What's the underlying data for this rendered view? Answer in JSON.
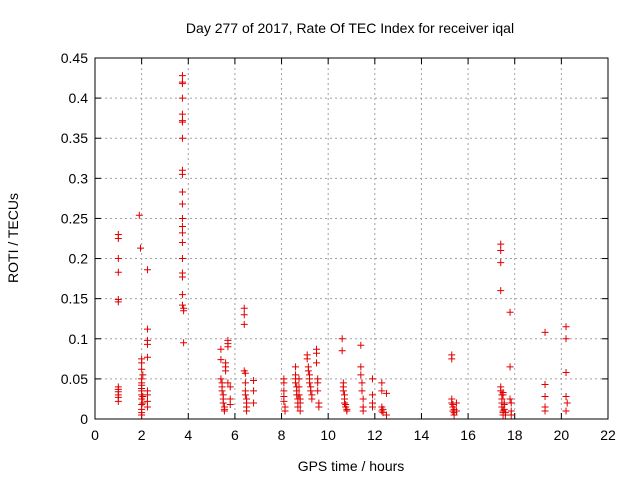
{
  "chart_data": {
    "type": "scatter",
    "title": "Day 277 of 2017, Rate Of TEC Index for receiver iqal",
    "xlabel": "GPS time / hours",
    "ylabel": "ROTI / TECUs",
    "xlim": [
      0,
      22
    ],
    "ylim": [
      0,
      0.45
    ],
    "xticks": [
      "0",
      "2",
      "4",
      "6",
      "8",
      "10",
      "12",
      "14",
      "16",
      "18",
      "20",
      "22"
    ],
    "yticks": [
      "0",
      "0.05",
      "0.1",
      "0.15",
      "0.2",
      "0.25",
      "0.3",
      "0.35",
      "0.4",
      "0.45"
    ],
    "grid": true,
    "marker": "plus",
    "color": "#e00000",
    "series": [
      {
        "name": "ROTI",
        "x": [
          1.0,
          1.0,
          1.0,
          1.0,
          1.0,
          1.0,
          1.0,
          1.0,
          1.0,
          1.0,
          1.0,
          1.0,
          1.9,
          1.95,
          2.0,
          2.0,
          2.0,
          2.0,
          2.0,
          2.0,
          2.0,
          2.0,
          2.0,
          2.0,
          2.0,
          2.0,
          2.0,
          2.0,
          2.05,
          2.05,
          2.05,
          2.25,
          2.25,
          2.25,
          2.25,
          2.25,
          2.25,
          2.25,
          2.25,
          2.25,
          3.75,
          3.75,
          3.75,
          3.75,
          3.75,
          3.75,
          3.75,
          3.75,
          3.75,
          3.75,
          3.75,
          3.75,
          3.75,
          3.75,
          3.75,
          3.75,
          3.75,
          3.75,
          3.75,
          3.75,
          3.75,
          3.8,
          3.8,
          3.8,
          5.4,
          5.4,
          5.4,
          5.45,
          5.45,
          5.45,
          5.5,
          5.5,
          5.5,
          5.55,
          5.55,
          5.55,
          5.6,
          5.6,
          5.6,
          5.7,
          5.7,
          5.7,
          5.7,
          5.8,
          5.8,
          5.8,
          6.4,
          6.4,
          6.4,
          6.4,
          6.45,
          6.45,
          6.45,
          6.45,
          6.5,
          6.5,
          6.5,
          6.5,
          6.8,
          6.8,
          6.8,
          8.1,
          8.1,
          8.1,
          8.1,
          8.1,
          8.15,
          8.15,
          8.6,
          8.6,
          8.6,
          8.6,
          8.65,
          8.65,
          8.65,
          8.7,
          8.7,
          8.7,
          8.75,
          8.75,
          8.75,
          8.8,
          8.8,
          8.8,
          9.1,
          9.1,
          9.15,
          9.15,
          9.2,
          9.2,
          9.2,
          9.25,
          9.25,
          9.3,
          9.3,
          9.5,
          9.5,
          9.5,
          9.55,
          9.55,
          9.55,
          9.6,
          9.6,
          10.6,
          10.6,
          10.65,
          10.65,
          10.65,
          10.7,
          10.7,
          10.7,
          10.75,
          10.75,
          10.8,
          10.8,
          11.4,
          11.4,
          11.4,
          11.45,
          11.45,
          11.5,
          11.5,
          11.5,
          11.9,
          11.9,
          11.9,
          11.9,
          12.3,
          12.3,
          12.3,
          12.3,
          12.35,
          12.35,
          12.5,
          12.5,
          15.3,
          15.3,
          15.3,
          15.3,
          15.35,
          15.35,
          15.35,
          15.4,
          15.4,
          15.4,
          15.5,
          15.5,
          17.4,
          17.4,
          17.4,
          17.4,
          17.4,
          17.4,
          17.45,
          17.45,
          17.45,
          17.45,
          17.5,
          17.5,
          17.5,
          17.5,
          17.5,
          17.55,
          17.55,
          17.55,
          17.6,
          17.6,
          17.8,
          17.8,
          17.8,
          17.85,
          17.85,
          17.85,
          19.3,
          19.3,
          19.3,
          19.3,
          19.3,
          20.2,
          20.2,
          20.2,
          20.2,
          20.2,
          20.25
        ],
        "y": [
          0.23,
          0.225,
          0.2,
          0.183,
          0.149,
          0.146,
          0.04,
          0.037,
          0.034,
          0.03,
          0.027,
          0.022,
          0.254,
          0.213,
          0.075,
          0.07,
          0.062,
          0.05,
          0.045,
          0.042,
          0.038,
          0.035,
          0.03,
          0.025,
          0.018,
          0.012,
          0.008,
          0.005,
          0.055,
          0.028,
          0.02,
          0.186,
          0.112,
          0.098,
          0.093,
          0.077,
          0.035,
          0.03,
          0.022,
          0.015,
          0.428,
          0.42,
          0.418,
          0.4,
          0.38,
          0.372,
          0.37,
          0.35,
          0.31,
          0.305,
          0.283,
          0.268,
          0.25,
          0.24,
          0.232,
          0.22,
          0.2,
          0.182,
          0.177,
          0.155,
          0.142,
          0.138,
          0.135,
          0.095,
          0.087,
          0.074,
          0.05,
          0.045,
          0.04,
          0.035,
          0.03,
          0.025,
          0.02,
          0.015,
          0.012,
          0.01,
          0.07,
          0.065,
          0.06,
          0.098,
          0.094,
          0.09,
          0.045,
          0.04,
          0.025,
          0.018,
          0.138,
          0.13,
          0.118,
          0.06,
          0.057,
          0.045,
          0.035,
          0.03,
          0.025,
          0.02,
          0.015,
          0.01,
          0.048,
          0.035,
          0.02,
          0.05,
          0.045,
          0.035,
          0.028,
          0.022,
          0.015,
          0.01,
          0.065,
          0.055,
          0.05,
          0.045,
          0.04,
          0.035,
          0.03,
          0.025,
          0.02,
          0.015,
          0.05,
          0.04,
          0.03,
          0.025,
          0.02,
          0.01,
          0.08,
          0.075,
          0.065,
          0.06,
          0.055,
          0.05,
          0.045,
          0.04,
          0.035,
          0.03,
          0.025,
          0.087,
          0.082,
          0.07,
          0.05,
          0.045,
          0.035,
          0.02,
          0.015,
          0.1,
          0.085,
          0.045,
          0.04,
          0.035,
          0.03,
          0.025,
          0.02,
          0.018,
          0.015,
          0.012,
          0.01,
          0.092,
          0.065,
          0.055,
          0.045,
          0.035,
          0.025,
          0.015,
          0.01,
          0.05,
          0.03,
          0.02,
          0.015,
          0.045,
          0.035,
          0.015,
          0.01,
          0.012,
          0.008,
          0.032,
          0.005,
          0.08,
          0.075,
          0.025,
          0.02,
          0.018,
          0.015,
          0.01,
          0.012,
          0.008,
          0.005,
          0.02,
          0.01,
          0.218,
          0.21,
          0.195,
          0.16,
          0.04,
          0.035,
          0.03,
          0.025,
          0.02,
          0.015,
          0.033,
          0.03,
          0.01,
          0.008,
          0.005,
          0.012,
          0.018,
          0.02,
          0.005,
          0.008,
          0.133,
          0.065,
          0.025,
          0.02,
          0.01,
          0.005,
          0.108,
          0.043,
          0.028,
          0.015,
          0.01,
          0.115,
          0.1,
          0.058,
          0.028,
          0.01,
          0.02
        ]
      }
    ]
  }
}
